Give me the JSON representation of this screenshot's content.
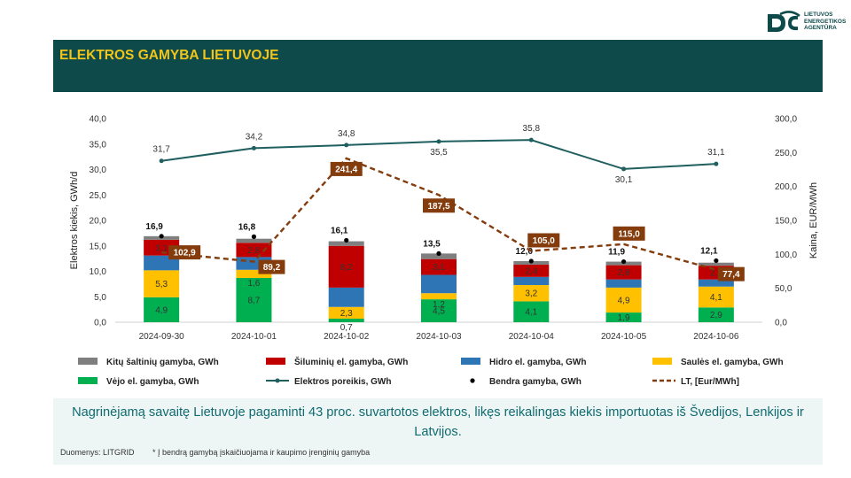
{
  "header": {
    "title": "ELEKTROS GAMYBA LIETUVOJE",
    "logo_lines": [
      "LIETUVOS",
      "ENERGETIKOS",
      "AGENTŪRA"
    ]
  },
  "colors": {
    "dark_teal": "#0f4a4a",
    "title_yellow": "#f0c419",
    "other": "#7f7f7f",
    "thermal": "#c00000",
    "hydro": "#2e75b6",
    "solar": "#ffc000",
    "wind": "#00b050",
    "demand": "#1f5f5f",
    "price": "#843c0c"
  },
  "chart_data": {
    "type": "bar",
    "stacked": true,
    "categories": [
      "2024-09-30",
      "2024-10-01",
      "2024-10-02",
      "2024-10-03",
      "2024-10-04",
      "2024-10-05",
      "2024-10-06"
    ],
    "ylabel": "Elektros kiekis, GWh/d",
    "y2label": "Kaina, EUR/MWh",
    "ylim": [
      0,
      40
    ],
    "y2lim": [
      0,
      300
    ],
    "yticks": [
      "0,0",
      "5,0",
      "10,0",
      "15,0",
      "20,0",
      "25,0",
      "30,0",
      "35,0",
      "40,0"
    ],
    "y2ticks": [
      "0,0",
      "50,0",
      "100,0",
      "150,0",
      "200,0",
      "250,0",
      "300,0"
    ],
    "series": [
      {
        "name": "Vėjo el. gamyba, GWh",
        "key": "wind",
        "values": [
          4.9,
          8.7,
          0.7,
          4.5,
          4.1,
          1.9,
          2.9
        ],
        "labels": [
          "4,9",
          "8,7",
          "0,7",
          "4,5",
          "4,1",
          "1,9",
          "2,9"
        ]
      },
      {
        "name": "Saulės el. gamyba, GWh",
        "key": "solar",
        "values": [
          5.3,
          1.6,
          2.3,
          1.2,
          3.2,
          4.9,
          4.1
        ],
        "labels": [
          "5,3",
          "1,6",
          "2,3",
          "1,2",
          "3,2",
          "4,9",
          "4,1"
        ]
      },
      {
        "name": "Hidro el. gamyba, GWh",
        "key": "hydro",
        "values": [
          2.9,
          2.5,
          3.8,
          3.6,
          1.6,
          1.6,
          1.4
        ],
        "labels": [
          "",
          "",
          "",
          "",
          "",
          "",
          ""
        ]
      },
      {
        "name": "Šiluminių el. gamyba, GWh",
        "key": "thermal",
        "values": [
          3.1,
          2.8,
          8.2,
          3.1,
          2.4,
          2.8,
          2.7
        ],
        "labels": [
          "3,1",
          "2,8",
          "8,2",
          "3,1",
          "2,4",
          "2,8",
          "2,7"
        ]
      },
      {
        "name": "Kitų šaltinių gamyba,  GWh",
        "key": "other",
        "values": [
          0.7,
          0.8,
          0.9,
          1.1,
          0.7,
          0.7,
          0.6
        ],
        "labels": [
          "",
          "",
          "",
          "",
          "",
          "",
          ""
        ]
      }
    ],
    "total": {
      "name": "Bendra gamyba, GWh",
      "values": [
        16.9,
        16.8,
        16.1,
        13.5,
        12.0,
        11.9,
        12.1
      ],
      "labels": [
        "16,9",
        "16,8",
        "16,1",
        "13,5",
        "12,0",
        "11,9",
        "12,1"
      ]
    },
    "demand": {
      "name": "Elektros poreikis, GWh",
      "values": [
        31.7,
        34.2,
        34.8,
        35.5,
        35.8,
        30.1,
        31.1
      ],
      "labels": [
        "31,7",
        "34,2",
        "34,8",
        "35,5",
        "35,8",
        "30,1",
        "31,1"
      ]
    },
    "price": {
      "name": "LT, [Eur/MWh]",
      "axis": "right",
      "values": [
        102.9,
        89.2,
        241.4,
        187.5,
        105.0,
        115.0,
        77.4
      ],
      "labels": [
        "102,9",
        "89,2",
        "241,4",
        "187,5",
        "105,0",
        "115,0",
        "77,4"
      ]
    },
    "legend_order": [
      "other",
      "thermal",
      "hydro",
      "solar",
      "wind",
      "demand",
      "total",
      "price"
    ],
    "legend_position": "bottom"
  },
  "footer": {
    "note": "Nagrinėjamą savaitę Lietuvoje pagaminti 43 proc. suvartotos elektros, likęs reikalingas kiekis importuotas iš Švedijos, Lenkijos ir Latvijos.",
    "source": "Duomenys: LITGRID",
    "footnote": "* Į bendrą gamybą įskaičiuojama ir kaupimo įrenginių gamyba"
  }
}
